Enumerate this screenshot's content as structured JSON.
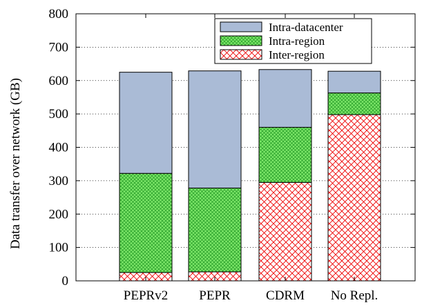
{
  "chart_data": {
    "type": "bar",
    "stacked": true,
    "title": "",
    "xlabel": "",
    "ylabel": "Data transfer over network (GB)",
    "ylim": [
      0,
      800
    ],
    "yticks": [
      0,
      100,
      200,
      300,
      400,
      500,
      600,
      700,
      800
    ],
    "grid": "horizontal-dotted",
    "legend_position": "top-right",
    "categories": [
      "PEPRv2",
      "PEPR",
      "CDRM",
      "No Repl."
    ],
    "series": [
      {
        "name": "Inter-region",
        "values": [
          25,
          27,
          295,
          498
        ],
        "color": "#ee0000",
        "fill": "#ffffff",
        "pattern": "crosshatch"
      },
      {
        "name": "Intra-region",
        "values": [
          297,
          251,
          165,
          65
        ],
        "color": "#2ba02b",
        "fill": "#7ee86a",
        "pattern": "fine-crosshatch"
      },
      {
        "name": "Intra-datacenter",
        "values": [
          303,
          351,
          173,
          65
        ],
        "color": "#aabbd6",
        "fill": "#aabbd6",
        "pattern": "solid"
      }
    ]
  }
}
